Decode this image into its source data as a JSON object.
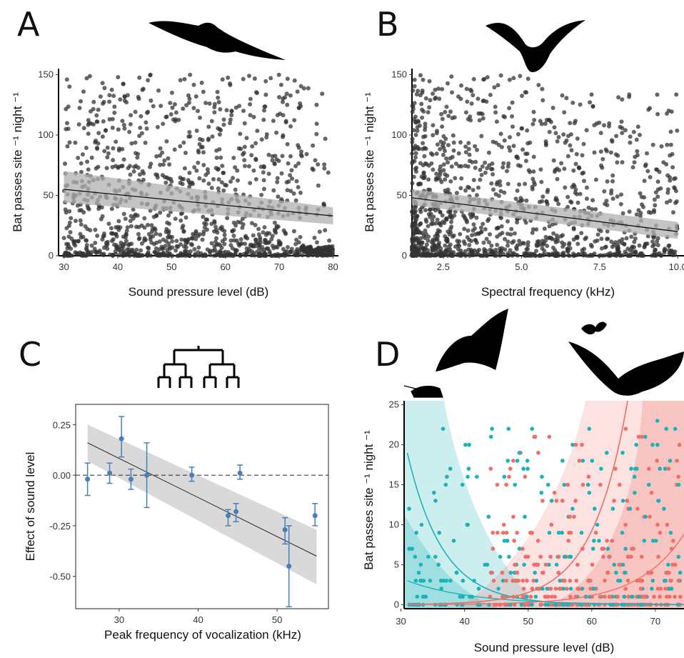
{
  "chart_data": [
    {
      "panel": "A",
      "type": "scatter",
      "xlabel": "Sound pressure level (dB)",
      "ylabel": "Bat passes site ⁻¹ night ⁻¹",
      "xlim": [
        29,
        81
      ],
      "ylim": [
        0,
        155
      ],
      "xticks": [
        "30",
        "40",
        "50",
        "60",
        "70",
        "80"
      ],
      "yticks": [
        "0",
        "50",
        "100",
        "150"
      ],
      "fit": {
        "x": [
          30,
          80
        ],
        "y": [
          55,
          33
        ]
      },
      "band": {
        "x": [
          30,
          80
        ],
        "lower": [
          44,
          26
        ],
        "upper": [
          70,
          40
        ]
      },
      "point_color": "#333333",
      "silhouette": "flying-bat-icon"
    },
    {
      "panel": "B",
      "type": "scatter",
      "xlabel": "Spectral frequency (kHz)",
      "ylabel": "Bat passes site ⁻¹ night ⁻¹",
      "xlim": [
        1.5,
        10.2
      ],
      "ylim": [
        0,
        155
      ],
      "xticks": [
        "2.5",
        "5.0",
        "7.5",
        "10.0"
      ],
      "yticks": [
        "0",
        "50",
        "100",
        "150"
      ],
      "fit": {
        "x": [
          1.5,
          10
        ],
        "y": [
          48,
          20
        ]
      },
      "band": {
        "x": [
          1.5,
          10
        ],
        "lower": [
          42,
          14
        ],
        "upper": [
          55,
          28
        ]
      },
      "point_color": "#333333",
      "silhouette": "flying-bat-icon"
    },
    {
      "panel": "C",
      "type": "scatter",
      "xlabel": "Peak frequency of vocalization (kHz)",
      "ylabel": "Effect of sound level",
      "xlim": [
        24.5,
        56.5
      ],
      "ylim": [
        -0.66,
        0.35
      ],
      "xticks": [
        "30",
        "40",
        "50"
      ],
      "yticks": [
        "-0.50",
        "-0.25",
        "0.00",
        "0.25"
      ],
      "x": [
        26,
        28.8,
        30.3,
        31.5,
        33.5,
        39.2,
        43.8,
        44.8,
        45.3,
        51,
        51.5,
        54.8
      ],
      "y": [
        -0.02,
        0.01,
        0.18,
        -0.02,
        0.0,
        0.0,
        -0.2,
        -0.18,
        0.01,
        -0.27,
        -0.45,
        -0.2
      ],
      "err_low": [
        -0.1,
        -0.04,
        0.09,
        -0.07,
        -0.16,
        -0.03,
        -0.25,
        -0.23,
        -0.02,
        -0.34,
        -0.65,
        -0.25
      ],
      "err_high": [
        0.06,
        0.06,
        0.29,
        0.03,
        0.16,
        0.04,
        -0.17,
        -0.14,
        0.05,
        -0.21,
        -0.25,
        -0.14
      ],
      "fit": {
        "x": [
          26,
          55
        ],
        "y": [
          0.16,
          -0.4
        ]
      },
      "band": {
        "x": [
          26,
          55
        ],
        "lower": [
          0.07,
          -0.54
        ],
        "upper": [
          0.25,
          -0.27
        ]
      },
      "reference_line": 0,
      "point_color": "#4a7fb5",
      "silhouette": "phylogeny-tree-icon"
    },
    {
      "panel": "D",
      "type": "scatter",
      "xlabel": "Sound pressure level (dB)",
      "ylabel": "Bat passes site ⁻¹ night ⁻¹",
      "xlim": [
        30.5,
        74.5
      ],
      "ylim": [
        -0.5,
        25.5
      ],
      "xticks": [
        "30",
        "40",
        "50",
        "60",
        "70"
      ],
      "yticks": [
        "0",
        "5",
        "10",
        "15",
        "20",
        "25"
      ],
      "series": [
        {
          "color": "#1bb3b8",
          "fit_curve": "decreasing",
          "silhouette": "katydid-icon"
        },
        {
          "color": "#f06e68",
          "fit_curve": "increasing",
          "silhouette": "moth-icon"
        }
      ],
      "silhouette": "flying-bat-icon"
    }
  ],
  "panels": [
    "A",
    "B",
    "C",
    "D"
  ]
}
